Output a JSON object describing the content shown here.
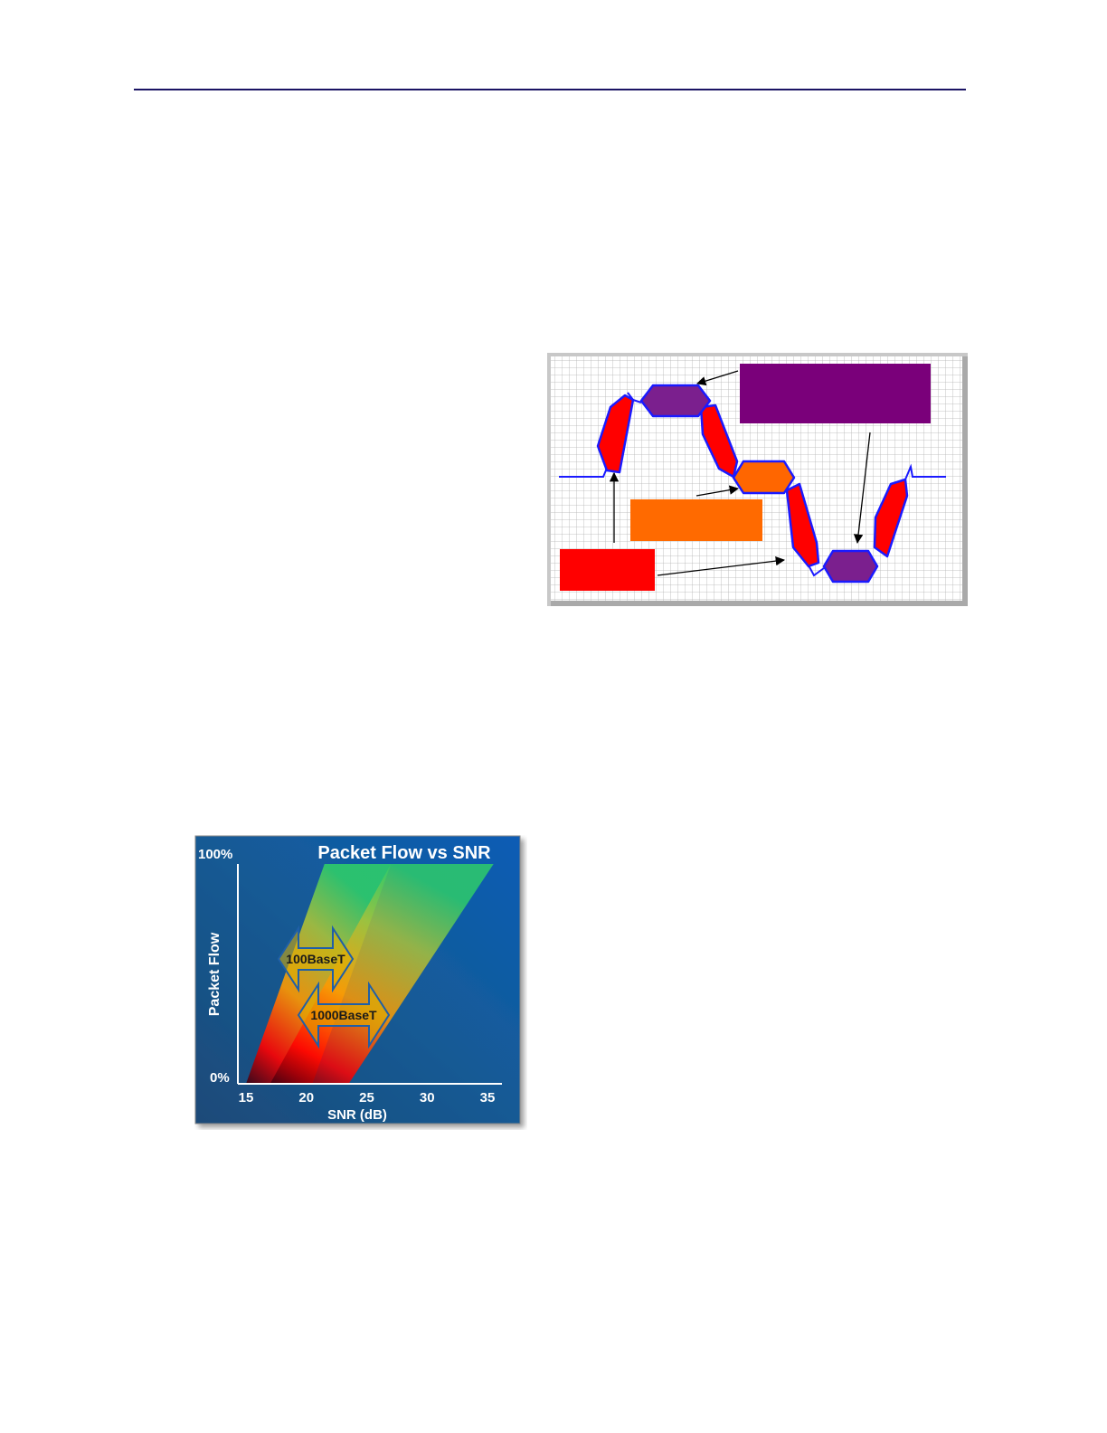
{
  "page": {
    "background": "#ffffff",
    "rule_color": "#1b1464"
  },
  "eye_diagram": {
    "colors": {
      "grid_background": "#ffffff",
      "grid_line": "#b4b4b4",
      "frame": "#bdbdbd",
      "trace": "#1a1aff",
      "transition_fill": "#ff0000",
      "high_level_fill": "#7b1f8e",
      "mid_level_fill": "#ff6600",
      "callout_purple": "#7a007a",
      "callout_orange": "#ff6a00",
      "callout_red": "#ff0000",
      "arrow": "#000000"
    },
    "callouts": [
      {
        "id": "purple",
        "label": ""
      },
      {
        "id": "orange",
        "label": ""
      },
      {
        "id": "red",
        "label": ""
      }
    ]
  },
  "chart_data": {
    "type": "area",
    "title": "Packet Flow vs SNR",
    "xlabel": "SNR (dB)",
    "ylabel": "Packet Flow",
    "x_ticks": [
      "15",
      "20",
      "25",
      "30",
      "35"
    ],
    "y_ticks": [
      "0%",
      "100%"
    ],
    "xlim": [
      15,
      35
    ],
    "ylim": [
      0,
      100
    ],
    "series": [
      {
        "name": "100BaseT",
        "polygon": [
          [
            15,
            0
          ],
          [
            20.5,
            0
          ],
          [
            27,
            100
          ],
          [
            21.5,
            100
          ]
        ]
      },
      {
        "name": "1000BaseT",
        "polygon": [
          [
            17,
            0
          ],
          [
            23.5,
            0
          ],
          [
            35.5,
            100
          ],
          [
            27,
            100
          ]
        ]
      }
    ],
    "colors": {
      "background": "#0f5aa0",
      "background_dark": "#1c4a78",
      "low_flow": "#ff0000",
      "mid_flow": "#ff9900",
      "high_flow": "#2ecc6a",
      "arrow_fill": "#e0b000",
      "axis": "#ffffff",
      "text": "#ffffff"
    }
  }
}
